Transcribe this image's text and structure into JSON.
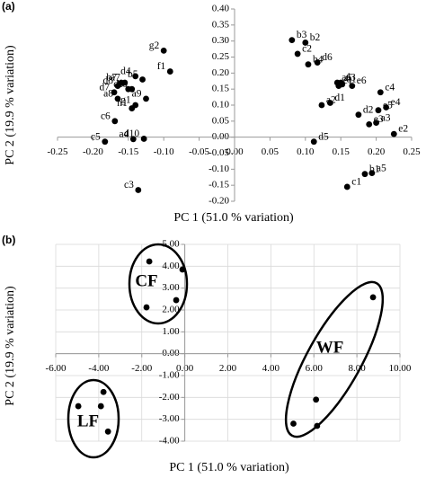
{
  "chart_data": [
    {
      "type": "scatter",
      "panel": "(a)",
      "x_label": "PC 1 (51.0 % variation)",
      "y_label": "PC 2 (19.9 % variation)",
      "xlim": [
        -0.25,
        0.25
      ],
      "ylim": [
        -0.2,
        0.4
      ],
      "grid": false,
      "color": "#000000",
      "xticks": [
        {
          "value": -0.25,
          "label": "-0.25"
        },
        {
          "value": -0.2,
          "label": "-0.20"
        },
        {
          "value": -0.15,
          "label": "-0.15"
        },
        {
          "value": -0.1,
          "label": "-0.10"
        },
        {
          "value": -0.05,
          "label": "-0.05"
        },
        {
          "value": 0,
          "label": "0.00"
        },
        {
          "value": 0.05,
          "label": "0.05"
        },
        {
          "value": 0.1,
          "label": "0.10"
        },
        {
          "value": 0.15,
          "label": "0.15"
        },
        {
          "value": 0.2,
          "label": "0.20"
        },
        {
          "value": 0.25,
          "label": "0.25"
        }
      ],
      "yticks": [
        {
          "value": -0.2,
          "label": "-0.20"
        },
        {
          "value": -0.15,
          "label": "-0.15"
        },
        {
          "value": -0.1,
          "label": "-0.10"
        },
        {
          "value": -0.05,
          "label": "-0.05"
        },
        {
          "value": 0,
          "label": "0.00"
        },
        {
          "value": 0.05,
          "label": "0.05"
        },
        {
          "value": 0.1,
          "label": "0.10"
        },
        {
          "value": 0.15,
          "label": "0.15"
        },
        {
          "value": 0.2,
          "label": "0.20"
        },
        {
          "value": 0.25,
          "label": "0.25"
        },
        {
          "value": 0.3,
          "label": "0.30"
        },
        {
          "value": 0.35,
          "label": "0.35"
        },
        {
          "value": 0.4,
          "label": "0.40"
        }
      ],
      "point_labels": [
        "g2",
        "f1",
        "b7",
        "d4",
        "b5",
        "a7",
        "d8",
        "d9",
        "b6",
        "d7",
        "a9",
        "a8",
        "g1",
        "h1",
        "c6",
        "c5",
        "a4",
        "d10",
        "c3",
        "b3",
        "c2",
        "b2",
        "b4",
        "d6",
        "d3",
        "a1",
        "a6",
        "e1",
        "e6",
        "c4",
        "a2",
        "d1",
        "e5",
        "e4",
        "d2",
        "a3",
        "e3",
        "e2",
        "d5",
        "b1",
        "a5",
        "c1"
      ],
      "x": [
        -0.1,
        -0.091,
        -0.16,
        -0.14,
        -0.13,
        -0.155,
        -0.165,
        -0.15,
        -0.145,
        -0.17,
        -0.125,
        -0.165,
        -0.14,
        -0.145,
        -0.169,
        -0.183,
        -0.143,
        -0.128,
        -0.136,
        0.081,
        0.089,
        0.1,
        0.104,
        0.117,
        0.15,
        0.152,
        0.145,
        0.147,
        0.166,
        0.206,
        0.123,
        0.135,
        0.203,
        0.214,
        0.175,
        0.2,
        0.19,
        0.225,
        0.112,
        0.184,
        0.194,
        0.159
      ],
      "values": [
        0.27,
        0.205,
        0.17,
        0.19,
        0.18,
        0.17,
        0.16,
        0.15,
        0.15,
        0.14,
        0.12,
        0.12,
        0.1,
        0.09,
        0.05,
        -0.014,
        -0.006,
        -0.005,
        -0.165,
        0.303,
        0.26,
        0.295,
        0.227,
        0.233,
        0.17,
        0.165,
        0.17,
        0.16,
        0.16,
        0.14,
        0.1,
        0.107,
        0.084,
        0.093,
        0.07,
        0.045,
        0.04,
        0.01,
        -0.014,
        -0.115,
        -0.112,
        -0.155
      ]
    },
    {
      "type": "scatter",
      "panel": "(b)",
      "x_label": "PC 1 (51.0 % variation)",
      "y_label": "PC 2 (19.9 % variation)",
      "xlim": [
        -6,
        10
      ],
      "ylim": [
        -4,
        5
      ],
      "grid": true,
      "color": "#000000",
      "xticks": [
        {
          "value": -6,
          "label": "-6.00"
        },
        {
          "value": -4,
          "label": "-4.00"
        },
        {
          "value": -2,
          "label": "-2.00"
        },
        {
          "value": 0,
          "label": "0.00"
        },
        {
          "value": 2,
          "label": "2.00"
        },
        {
          "value": 4,
          "label": "4.00"
        },
        {
          "value": 6,
          "label": "6.00"
        },
        {
          "value": 8,
          "label": "8.00"
        },
        {
          "value": 10,
          "label": "10.00"
        }
      ],
      "yticks": [
        {
          "value": -4,
          "label": "-4.00"
        },
        {
          "value": -3,
          "label": "-3.00"
        },
        {
          "value": -2,
          "label": "-2.00"
        },
        {
          "value": -1,
          "label": "-1.00"
        },
        {
          "value": 0,
          "label": "0.00"
        },
        {
          "value": 1,
          "label": "1.00"
        },
        {
          "value": 2,
          "label": "2.00"
        },
        {
          "value": 3,
          "label": "3.00"
        },
        {
          "value": 4,
          "label": "4.00"
        },
        {
          "value": 5,
          "label": "5.00"
        }
      ],
      "series": [
        {
          "name": "CF",
          "x": [
            -1.65,
            -0.11,
            -0.4,
            -1.78
          ],
          "values": [
            4.22,
            3.85,
            2.45,
            2.12
          ]
        },
        {
          "name": "LF",
          "x": [
            -4.95,
            -3.9,
            -3.78,
            -3.57
          ],
          "values": [
            -2.4,
            -2.4,
            -1.75,
            -3.56
          ]
        },
        {
          "name": "WF",
          "x": [
            8.75,
            6.1,
            5.05,
            6.15
          ],
          "values": [
            2.58,
            -2.1,
            -3.2,
            -3.3
          ]
        }
      ]
    }
  ]
}
